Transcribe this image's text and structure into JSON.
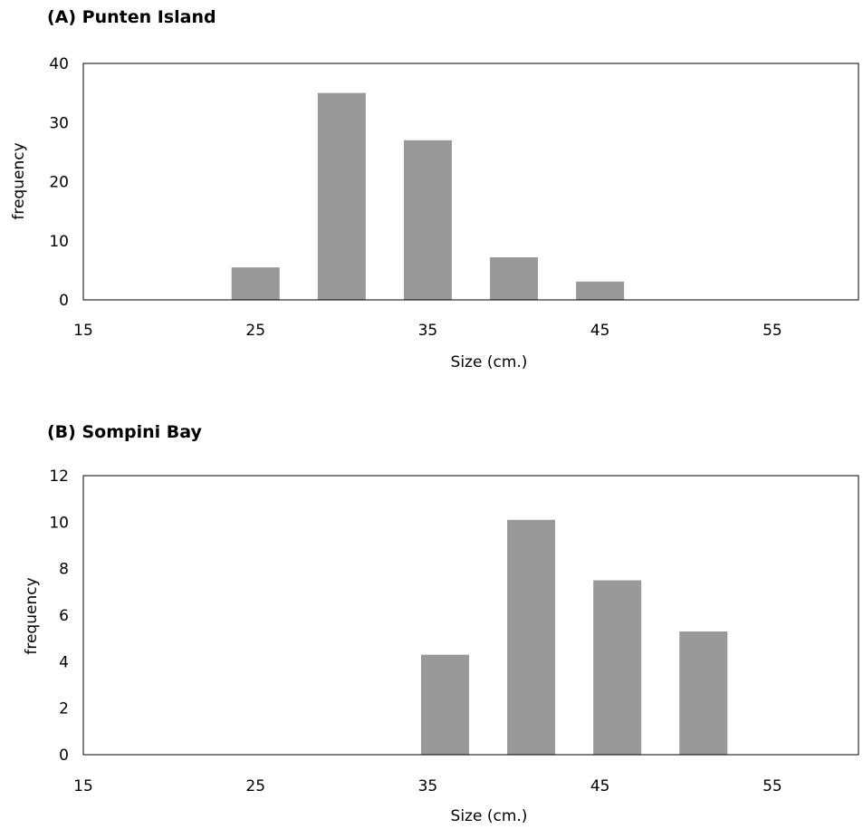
{
  "chart_data": [
    {
      "type": "bar",
      "title": "(A) Punten Island",
      "xlabel": "Size (cm.)",
      "ylabel": "frequency",
      "x_ticks": [
        15,
        25,
        35,
        45,
        55
      ],
      "xlim": [
        15,
        60
      ],
      "y_ticks": [
        0,
        10,
        20,
        30,
        40
      ],
      "ylim": [
        0,
        40
      ],
      "bar_color": "#999999",
      "bars": [
        {
          "x": 25,
          "value": 5.5
        },
        {
          "x": 30,
          "value": 35
        },
        {
          "x": 35,
          "value": 27
        },
        {
          "x": 40,
          "value": 7.2
        },
        {
          "x": 45,
          "value": 3.1
        }
      ],
      "grid": false
    },
    {
      "type": "bar",
      "title": "(B) Sompini Bay",
      "xlabel": "Size (cm.)",
      "ylabel": "frequency",
      "x_ticks": [
        15,
        25,
        35,
        45,
        55
      ],
      "xlim": [
        15,
        60
      ],
      "y_ticks": [
        0,
        2,
        4,
        6,
        8,
        10,
        12
      ],
      "ylim": [
        0,
        12
      ],
      "bar_color": "#999999",
      "bars": [
        {
          "x": 36,
          "value": 4.3
        },
        {
          "x": 41,
          "value": 10.1
        },
        {
          "x": 46,
          "value": 7.5
        },
        {
          "x": 51,
          "value": 5.3
        }
      ],
      "grid": false
    }
  ]
}
